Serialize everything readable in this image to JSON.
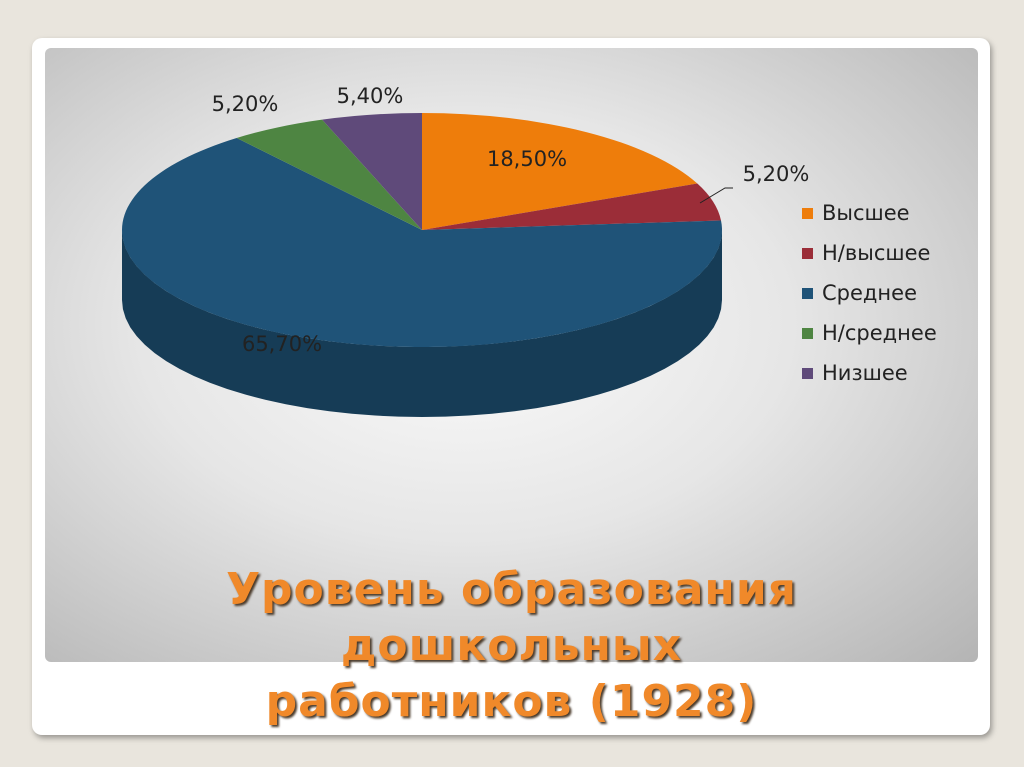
{
  "chart_data": {
    "type": "pie",
    "title": "Уровень образования дошкольных работников (1928)",
    "categories": [
      "Высшее",
      "Н/высшее",
      "Среднее",
      "Н/среднее",
      "Низшее"
    ],
    "values": [
      18.5,
      5.2,
      65.7,
      5.2,
      5.4
    ],
    "value_labels": [
      "18,50%",
      "5,20%",
      "65,70%",
      "5,20%",
      "5,40%"
    ],
    "colors": [
      "#ee7d0b",
      "#9b2d38",
      "#1f5378",
      "#4e8542",
      "#5f4a7a"
    ],
    "legend": "right"
  }
}
